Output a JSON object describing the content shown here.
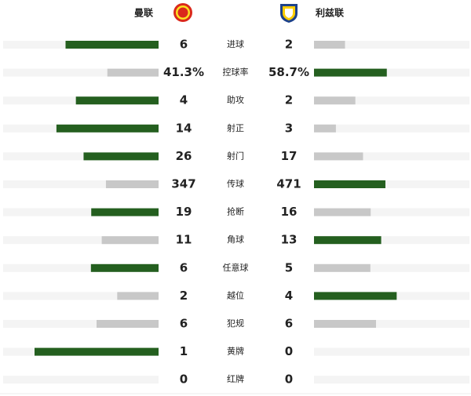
{
  "header": {
    "home_team": "曼联",
    "away_team": "利兹联"
  },
  "stats": [
    {
      "label": "进球",
      "home": 6,
      "away": 2
    },
    {
      "label": "控球率",
      "home": 41.3,
      "away": 58.7,
      "home_label": "41.3%",
      "away_label": "58.7%"
    },
    {
      "label": "助攻",
      "home": 4,
      "away": 2
    },
    {
      "label": "射正",
      "home": 14,
      "away": 3
    },
    {
      "label": "射门",
      "home": 26,
      "away": 17
    },
    {
      "label": "传球",
      "home": 347,
      "away": 471
    },
    {
      "label": "抢断",
      "home": 19,
      "away": 16
    },
    {
      "label": "角球",
      "home": 11,
      "away": 13
    },
    {
      "label": "任意球",
      "home": 6,
      "away": 5
    },
    {
      "label": "越位",
      "home": 2,
      "away": 4
    },
    {
      "label": "犯规",
      "home": 6,
      "away": 6
    },
    {
      "label": "黄牌",
      "home": 1,
      "away": 0
    },
    {
      "label": "红牌",
      "home": 0,
      "away": 0
    }
  ]
}
